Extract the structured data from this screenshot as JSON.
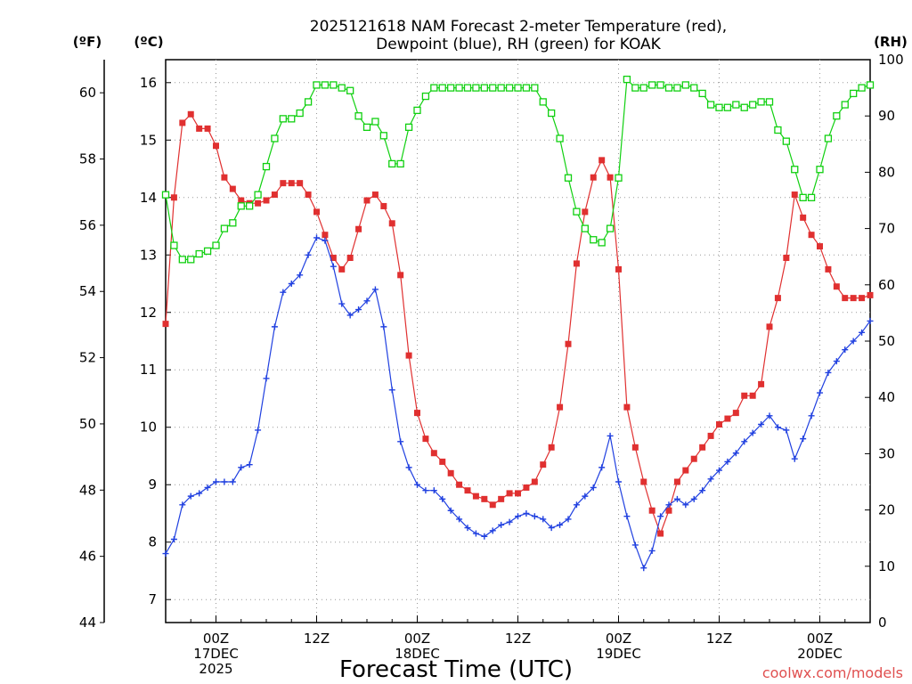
{
  "chart_data": {
    "type": "line",
    "title_lines": [
      "2025121618 NAM Forecast 2-meter Temperature (red),",
      "Dewpoint (blue), RH (green) for KOAK"
    ],
    "xlabel": "Forecast Time (UTC)",
    "credit": "coolwx.com/models",
    "axes": {
      "fahrenheit": {
        "label": "(ºF)",
        "ticks": [
          "44",
          "46",
          "48",
          "50",
          "52",
          "54",
          "56",
          "58",
          "60"
        ],
        "ylim": [
          44,
          61
        ]
      },
      "celsius": {
        "label": "(ºC)",
        "ticks": [
          "7",
          "8",
          "9",
          "10",
          "11",
          "12",
          "13",
          "14",
          "15",
          "16"
        ],
        "ylim": [
          6.6,
          16.4
        ]
      },
      "rh": {
        "label": "(RH)",
        "ticks": [
          "0",
          "10",
          "20",
          "30",
          "40",
          "50",
          "60",
          "70",
          "80",
          "90",
          "100"
        ],
        "ylim": [
          0,
          100
        ]
      }
    },
    "x_hours_range": [
      0,
      84
    ],
    "x_ticks": [
      {
        "hour": 6,
        "lines": [
          "00Z",
          "17DEC",
          "2025"
        ]
      },
      {
        "hour": 18,
        "lines": [
          "12Z"
        ]
      },
      {
        "hour": 30,
        "lines": [
          "00Z",
          "18DEC"
        ]
      },
      {
        "hour": 42,
        "lines": [
          "12Z"
        ]
      },
      {
        "hour": 54,
        "lines": [
          "00Z",
          "19DEC"
        ]
      },
      {
        "hour": 66,
        "lines": [
          "12Z"
        ]
      },
      {
        "hour": 78,
        "lines": [
          "00Z",
          "20DEC"
        ]
      }
    ],
    "series": [
      {
        "name": "2-meter Temperature",
        "unit": "°C",
        "color": "#e03030",
        "marker": "filled-square",
        "hours": [
          0,
          1,
          2,
          3,
          4,
          5,
          6,
          7,
          8,
          9,
          10,
          11,
          12,
          13,
          14,
          15,
          16,
          17,
          18,
          19,
          20,
          21,
          22,
          23,
          24,
          25,
          26,
          27,
          28,
          29,
          30,
          31,
          32,
          33,
          34,
          35,
          36,
          37,
          38,
          39,
          40,
          41,
          42,
          43,
          44,
          45,
          46,
          47,
          48,
          49,
          50,
          51,
          52,
          53,
          54,
          55,
          56,
          57,
          58,
          59,
          60,
          61,
          62,
          63,
          64,
          65,
          66,
          67,
          68,
          69,
          70,
          71,
          72,
          73,
          74,
          75,
          76,
          77,
          78,
          79,
          80,
          81,
          82,
          83,
          84
        ],
        "values": [
          11.8,
          14.0,
          15.3,
          15.45,
          15.2,
          15.2,
          14.9,
          14.35,
          14.15,
          13.95,
          13.9,
          13.9,
          13.95,
          14.05,
          14.25,
          14.25,
          14.25,
          14.05,
          13.75,
          13.35,
          12.95,
          12.75,
          12.95,
          13.45,
          13.95,
          14.05,
          13.85,
          13.55,
          12.65,
          11.25,
          10.25,
          9.8,
          9.55,
          9.4,
          9.2,
          9.0,
          8.9,
          8.8,
          8.75,
          8.65,
          8.75,
          8.85,
          8.85,
          8.95,
          9.05,
          9.35,
          9.65,
          10.35,
          11.45,
          12.85,
          13.75,
          14.35,
          14.65,
          14.35,
          12.75,
          10.35,
          9.65,
          9.05,
          8.55,
          8.15,
          8.55,
          9.05,
          9.25,
          9.45,
          9.65,
          9.85,
          10.05,
          10.15,
          10.25,
          10.55,
          10.55,
          10.75,
          11.75,
          12.25,
          12.95,
          14.05,
          13.65,
          13.35,
          13.15,
          12.75,
          12.45,
          12.25,
          12.25,
          12.25,
          12.3
        ]
      },
      {
        "name": "Dewpoint",
        "unit": "°C",
        "color": "#2040e0",
        "marker": "plus",
        "hours": [
          0,
          1,
          2,
          3,
          4,
          5,
          6,
          7,
          8,
          9,
          10,
          11,
          12,
          13,
          14,
          15,
          16,
          17,
          18,
          19,
          20,
          21,
          22,
          23,
          24,
          25,
          26,
          27,
          28,
          29,
          30,
          31,
          32,
          33,
          34,
          35,
          36,
          37,
          38,
          39,
          40,
          41,
          42,
          43,
          44,
          45,
          46,
          47,
          48,
          49,
          50,
          51,
          52,
          53,
          54,
          55,
          56,
          57,
          58,
          59,
          60,
          61,
          62,
          63,
          64,
          65,
          66,
          67,
          68,
          69,
          70,
          71,
          72,
          73,
          74,
          75,
          76,
          77,
          78,
          79,
          80,
          81,
          82,
          83,
          84
        ],
        "values": [
          7.8,
          8.05,
          8.65,
          8.8,
          8.85,
          8.95,
          9.05,
          9.05,
          9.05,
          9.3,
          9.35,
          9.95,
          10.85,
          11.75,
          12.35,
          12.5,
          12.65,
          13.0,
          13.3,
          13.25,
          12.8,
          12.15,
          11.95,
          12.05,
          12.2,
          12.4,
          11.75,
          10.65,
          9.75,
          9.3,
          9.0,
          8.9,
          8.9,
          8.75,
          8.55,
          8.4,
          8.25,
          8.15,
          8.1,
          8.2,
          8.3,
          8.35,
          8.45,
          8.5,
          8.45,
          8.4,
          8.25,
          8.3,
          8.4,
          8.65,
          8.8,
          8.95,
          9.3,
          9.85,
          9.05,
          8.45,
          7.95,
          7.55,
          7.85,
          8.45,
          8.65,
          8.75,
          8.65,
          8.75,
          8.9,
          9.1,
          9.25,
          9.4,
          9.55,
          9.75,
          9.9,
          10.05,
          10.2,
          10.0,
          9.95,
          9.45,
          9.8,
          10.2,
          10.6,
          10.95,
          11.15,
          11.35,
          11.5,
          11.65,
          11.85
        ]
      },
      {
        "name": "RH",
        "unit": "%",
        "color": "#10d010",
        "marker": "open-square",
        "hours": [
          0,
          1,
          2,
          3,
          4,
          5,
          6,
          7,
          8,
          9,
          10,
          11,
          12,
          13,
          14,
          15,
          16,
          17,
          18,
          19,
          20,
          21,
          22,
          23,
          24,
          25,
          26,
          27,
          28,
          29,
          30,
          31,
          32,
          33,
          34,
          35,
          36,
          37,
          38,
          39,
          40,
          41,
          42,
          43,
          44,
          45,
          46,
          47,
          48,
          49,
          50,
          51,
          52,
          53,
          54,
          55,
          56,
          57,
          58,
          59,
          60,
          61,
          62,
          63,
          64,
          65,
          66,
          67,
          68,
          69,
          70,
          71,
          72,
          73,
          74,
          75,
          76,
          77,
          78,
          79,
          80,
          81,
          82,
          83,
          84
        ],
        "values": [
          76,
          67,
          64.5,
          64.5,
          65.5,
          66,
          67,
          70,
          71,
          74,
          74,
          76,
          81,
          86,
          89.5,
          89.5,
          90.5,
          92.5,
          95.5,
          95.5,
          95.5,
          95,
          94.5,
          90,
          88,
          89,
          86.5,
          81.5,
          81.5,
          88,
          91,
          93.5,
          95,
          95,
          95,
          95,
          95,
          95,
          95,
          95,
          95,
          95,
          95,
          95,
          95,
          92.5,
          90.5,
          86,
          79,
          73,
          70,
          68,
          67.5,
          70,
          79,
          96.5,
          95,
          95,
          95.5,
          95.5,
          95,
          95,
          95.5,
          95,
          94,
          92,
          91.5,
          91.5,
          92,
          91.5,
          92,
          92.5,
          92.5,
          87.5,
          85.5,
          80.5,
          75.5,
          75.5,
          80.5,
          86,
          90,
          92,
          94,
          95,
          95.5
        ]
      }
    ]
  }
}
